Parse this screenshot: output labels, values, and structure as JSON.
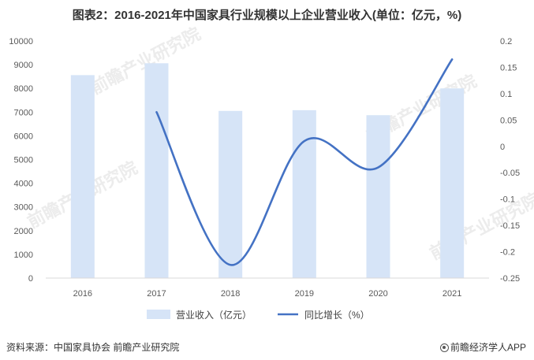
{
  "chart_data": {
    "type": "bar",
    "title": "图表2：2016-2021年中国家具行业规模以上企业营业收入(单位：亿元，%)",
    "categories": [
      "2016",
      "2017",
      "2018",
      "2019",
      "2020",
      "2021"
    ],
    "series": [
      {
        "name": "营业收入（亿元）",
        "type": "bar",
        "axis": "left",
        "color": "#d6e4f7",
        "values": [
          8560,
          9060,
          7050,
          7080,
          6870,
          8000
        ]
      },
      {
        "name": "同比增长（%）",
        "type": "line",
        "axis": "right",
        "color": "#4472c4",
        "x": [
          "2017",
          "2018",
          "2019",
          "2020",
          "2021"
        ],
        "values": [
          0.065,
          -0.225,
          0.01,
          -0.04,
          0.165
        ]
      }
    ],
    "y_left": {
      "ylim": [
        0,
        10000
      ],
      "ticks": [
        "0",
        "1000",
        "2000",
        "3000",
        "4000",
        "5000",
        "6000",
        "7000",
        "8000",
        "9000",
        "10000"
      ]
    },
    "y_right": {
      "ylim": [
        -0.25,
        0.2
      ],
      "ticks": [
        "-0.25",
        "-0.2",
        "-0.15",
        "-0.1",
        "-0.05",
        "0",
        "0.05",
        "0.1",
        "0.15",
        "0.2"
      ]
    },
    "grid": false,
    "legend": "bottom"
  },
  "footer": {
    "source": "资料来源：中国家具协会 前瞻产业研究院",
    "brand": "前瞻经济学人APP"
  },
  "watermark": "前瞻产业研究院"
}
